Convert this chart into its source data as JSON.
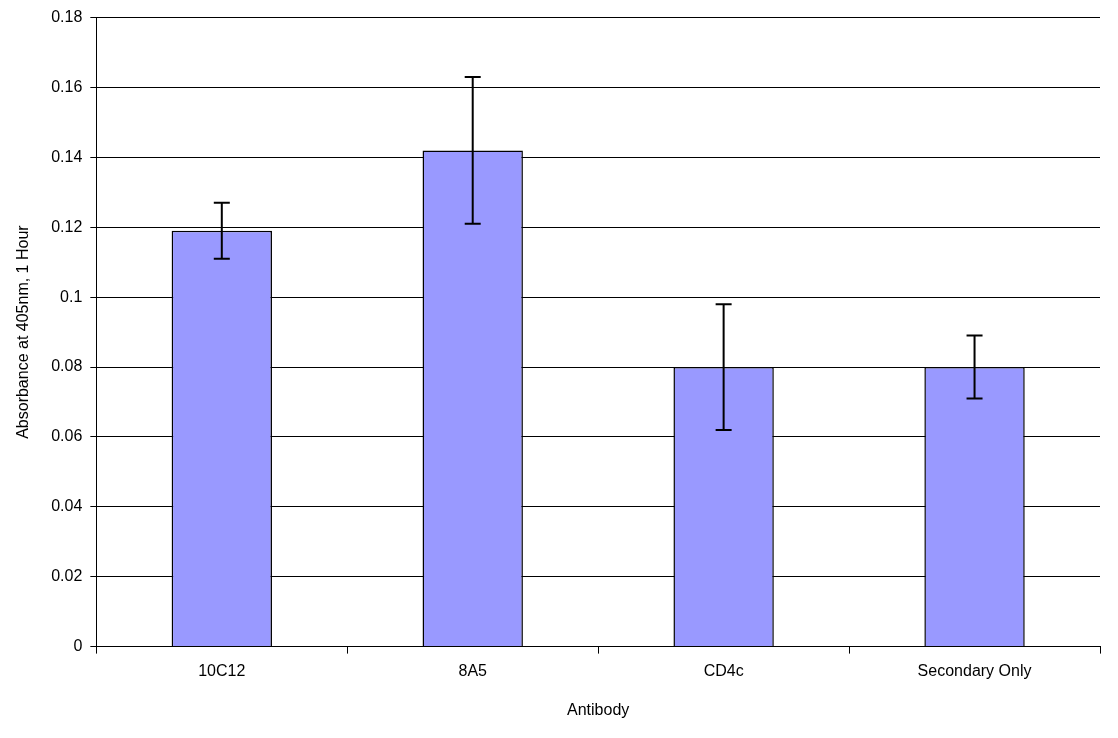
{
  "chart_data": {
    "type": "bar",
    "xlabel": "Antibody",
    "ylabel": "Absorbance at 405nm, 1 Hour",
    "categories": [
      "10C12",
      "8A5",
      "CD4c",
      "Secondary Only"
    ],
    "values": [
      0.119,
      0.142,
      0.08,
      0.08
    ],
    "errors": [
      0.008,
      0.021,
      0.018,
      0.009
    ],
    "color": "#9999ff",
    "ylim": [
      0,
      0.18
    ],
    "yticks": [
      0,
      0.02,
      0.04,
      0.06,
      0.08,
      0.1,
      0.12,
      0.14,
      0.16,
      0.18
    ],
    "grid": "y",
    "legend": false
  }
}
